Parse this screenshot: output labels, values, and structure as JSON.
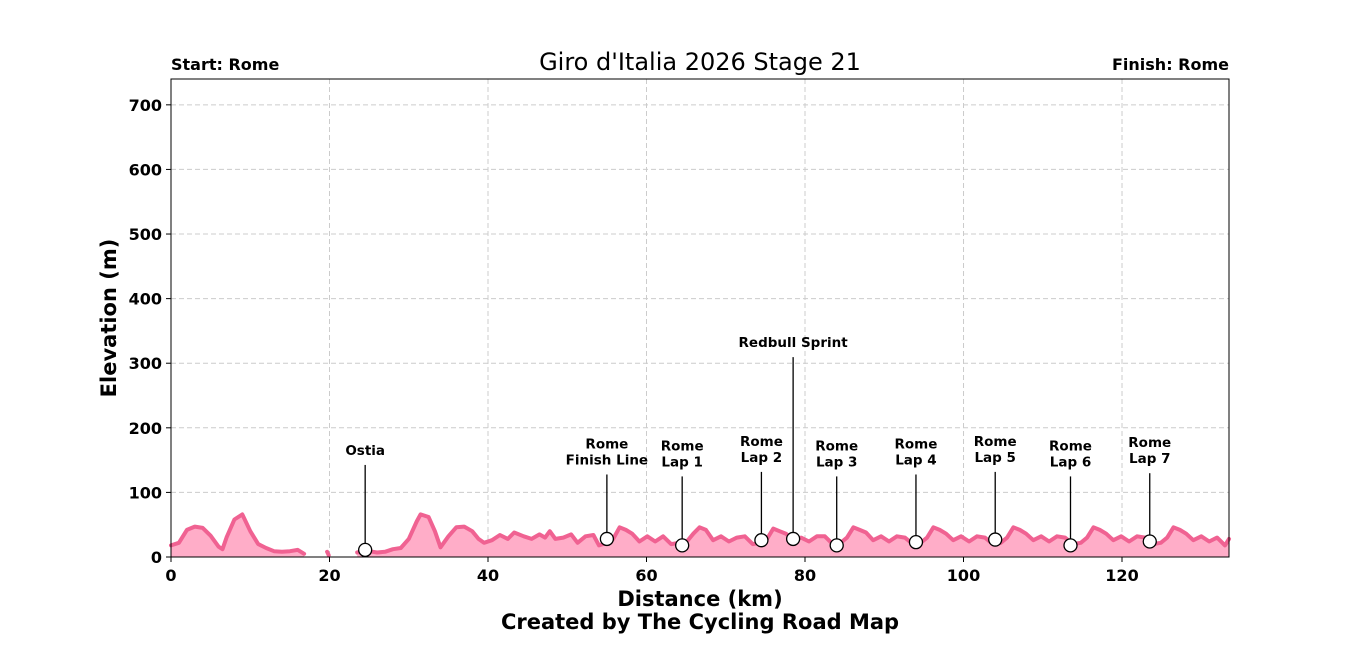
{
  "chart_data": {
    "type": "area",
    "title": "Giro d'Italia 2026 Stage 21",
    "start_label": "Start: Rome",
    "finish_label": "Finish: Rome",
    "xlabel": "Distance (km)",
    "ylabel": "Elevation (m)",
    "credit": "Created by The Cycling Road Map",
    "xlim": [
      0,
      133.5
    ],
    "ylim": [
      0,
      740
    ],
    "x_ticks": [
      0,
      20,
      40,
      60,
      80,
      100,
      120
    ],
    "y_ticks": [
      0,
      100,
      200,
      300,
      400,
      500,
      600,
      700
    ],
    "grid": true,
    "colors": {
      "line": "#f06292",
      "fill": "#ffadc8"
    },
    "segments": [
      [
        [
          0,
          18
        ],
        [
          1,
          22
        ],
        [
          2,
          42
        ],
        [
          3,
          47
        ],
        [
          4,
          45
        ],
        [
          5,
          33
        ],
        [
          6,
          16
        ],
        [
          6.5,
          12
        ],
        [
          7,
          30
        ],
        [
          8,
          58
        ],
        [
          9,
          66
        ],
        [
          10,
          40
        ],
        [
          11,
          20
        ],
        [
          12,
          14
        ],
        [
          13,
          9
        ],
        [
          14,
          8
        ],
        [
          15,
          9
        ],
        [
          16,
          11
        ],
        [
          16.8,
          5
        ]
      ],
      [
        [
          19.7,
          8
        ],
        [
          19.9,
          3
        ]
      ],
      [
        [
          23.5,
          7
        ],
        [
          24.5,
          10
        ],
        [
          25,
          9
        ],
        [
          26,
          7
        ],
        [
          27,
          8
        ],
        [
          28,
          12
        ],
        [
          29,
          14
        ],
        [
          30,
          28
        ],
        [
          31,
          55
        ],
        [
          31.5,
          66
        ],
        [
          32.5,
          62
        ],
        [
          33.3,
          40
        ],
        [
          34,
          15
        ],
        [
          35,
          32
        ],
        [
          36,
          46
        ],
        [
          37,
          47
        ],
        [
          38,
          40
        ],
        [
          38.8,
          28
        ],
        [
          39.5,
          22
        ],
        [
          40.5,
          26
        ],
        [
          41.5,
          34
        ],
        [
          42.5,
          28
        ],
        [
          43.3,
          38
        ],
        [
          44.5,
          32
        ],
        [
          45.5,
          28
        ],
        [
          46.5,
          35
        ],
        [
          47.2,
          30
        ],
        [
          47.8,
          40
        ],
        [
          48.5,
          28
        ],
        [
          49.5,
          30
        ],
        [
          50.5,
          35
        ],
        [
          51.3,
          22
        ],
        [
          52.3,
          32
        ],
        [
          53.3,
          34
        ],
        [
          54,
          18
        ],
        [
          55,
          22
        ],
        [
          55.8,
          28
        ],
        [
          56.6,
          46
        ],
        [
          57.4,
          42
        ],
        [
          58.2,
          36
        ],
        [
          59.1,
          24
        ],
        [
          60.1,
          32
        ],
        [
          61.1,
          24
        ],
        [
          62.1,
          32
        ],
        [
          63.1,
          20
        ],
        [
          64.1,
          22
        ],
        [
          65.1,
          24
        ],
        [
          65.9,
          36
        ],
        [
          66.7,
          46
        ],
        [
          67.5,
          42
        ],
        [
          68.4,
          26
        ],
        [
          69.4,
          32
        ],
        [
          70.4,
          24
        ],
        [
          71.4,
          30
        ],
        [
          72.4,
          32
        ],
        [
          73.4,
          20
        ],
        [
          74.4,
          22
        ],
        [
          75.2,
          28
        ],
        [
          76,
          44
        ],
        [
          76.8,
          40
        ],
        [
          77.6,
          36
        ],
        [
          78.5,
          26
        ],
        [
          79.5,
          30
        ],
        [
          80.5,
          24
        ],
        [
          81.5,
          32
        ],
        [
          82.5,
          32
        ],
        [
          83.5,
          20
        ],
        [
          84.5,
          22
        ],
        [
          85.3,
          30
        ],
        [
          86.1,
          46
        ],
        [
          86.9,
          42
        ],
        [
          87.7,
          38
        ],
        [
          88.6,
          26
        ],
        [
          89.6,
          32
        ],
        [
          90.6,
          24
        ],
        [
          91.6,
          32
        ],
        [
          92.6,
          30
        ],
        [
          93.6,
          20
        ],
        [
          94.6,
          22
        ],
        [
          95.4,
          30
        ],
        [
          96.2,
          46
        ],
        [
          97,
          42
        ],
        [
          97.8,
          36
        ],
        [
          98.7,
          26
        ],
        [
          99.7,
          32
        ],
        [
          100.7,
          24
        ],
        [
          101.7,
          32
        ],
        [
          102.7,
          30
        ],
        [
          103.7,
          20
        ],
        [
          104.7,
          22
        ],
        [
          105.5,
          30
        ],
        [
          106.3,
          46
        ],
        [
          107.1,
          42
        ],
        [
          107.9,
          36
        ],
        [
          108.8,
          26
        ],
        [
          109.8,
          32
        ],
        [
          110.8,
          24
        ],
        [
          111.8,
          32
        ],
        [
          112.8,
          30
        ],
        [
          113.8,
          20
        ],
        [
          114.8,
          22
        ],
        [
          115.6,
          30
        ],
        [
          116.4,
          46
        ],
        [
          117.2,
          42
        ],
        [
          118,
          36
        ],
        [
          118.9,
          26
        ],
        [
          119.9,
          32
        ],
        [
          120.9,
          24
        ],
        [
          121.9,
          32
        ],
        [
          122.9,
          30
        ],
        [
          123.9,
          20
        ],
        [
          124.9,
          22
        ],
        [
          125.7,
          30
        ],
        [
          126.5,
          46
        ],
        [
          127.3,
          42
        ],
        [
          128.1,
          36
        ],
        [
          129,
          26
        ],
        [
          130,
          32
        ],
        [
          131,
          24
        ],
        [
          132,
          30
        ],
        [
          133,
          18
        ],
        [
          133.5,
          28
        ]
      ]
    ],
    "annotations": [
      {
        "x": 24.5,
        "y": 11,
        "label_top": 158,
        "text": [
          "Ostia"
        ]
      },
      {
        "x": 55,
        "y": 28,
        "label_top": 168,
        "text": [
          "Rome",
          "Finish Line"
        ]
      },
      {
        "x": 64.5,
        "y": 18,
        "label_top": 165,
        "text": [
          "Rome",
          "Lap 1"
        ]
      },
      {
        "x": 74.5,
        "y": 26,
        "label_top": 172,
        "text": [
          "Rome",
          "Lap 2"
        ]
      },
      {
        "x": 78.5,
        "y": 28,
        "label_top": 325,
        "text": [
          "Redbull Sprint"
        ]
      },
      {
        "x": 84,
        "y": 18,
        "label_top": 165,
        "text": [
          "Rome",
          "Lap 3"
        ]
      },
      {
        "x": 94,
        "y": 23,
        "label_top": 168,
        "text": [
          "Rome",
          "Lap 4"
        ]
      },
      {
        "x": 104,
        "y": 27,
        "label_top": 172,
        "text": [
          "Rome",
          "Lap 5"
        ]
      },
      {
        "x": 113.5,
        "y": 18,
        "label_top": 165,
        "text": [
          "Rome",
          "Lap 6"
        ]
      },
      {
        "x": 123.5,
        "y": 24,
        "label_top": 170,
        "text": [
          "Rome",
          "Lap 7"
        ]
      }
    ]
  }
}
